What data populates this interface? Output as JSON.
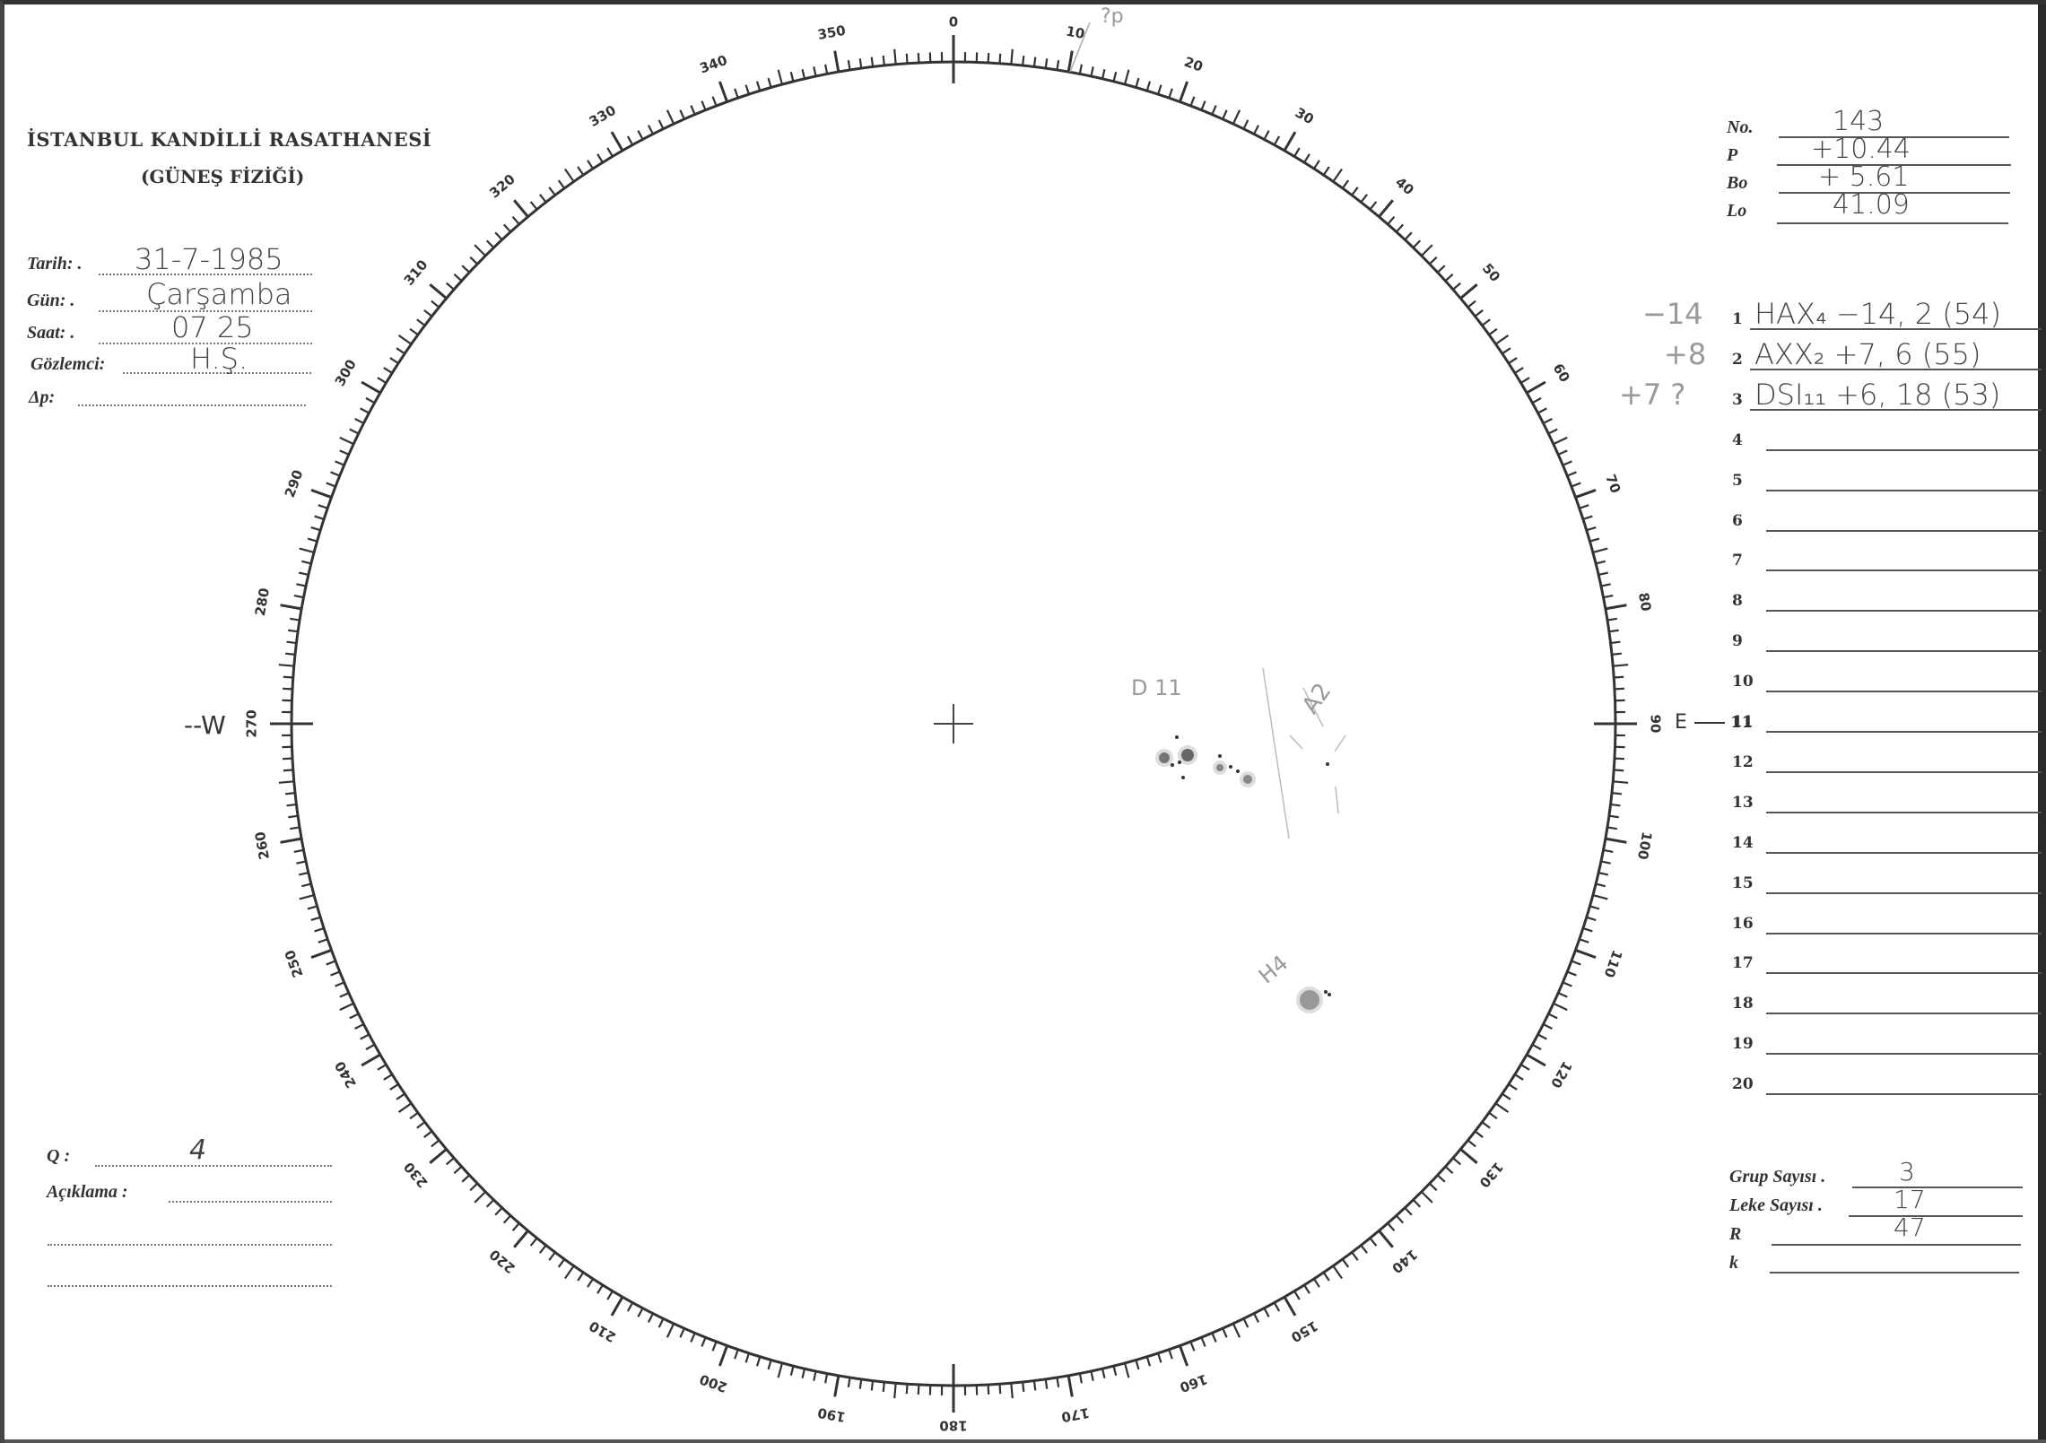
{
  "header": {
    "institution": "İSTANBUL KANDİLLİ RASATHANESİ",
    "department": "(GÜNEŞ FİZİĞİ)"
  },
  "observation": {
    "date_label": "Tarih: .",
    "date_value": "31-7-1985",
    "day_label": "Gün: .",
    "day_value": "Çarşamba",
    "time_label": "Saat: .",
    "time_value": "07 25",
    "observer_label": "Gözlemci:",
    "observer_value": "H.Ş.",
    "delta_p_label": "Δp:",
    "delta_p_value": ""
  },
  "ephemeris": {
    "no_label": "No.",
    "no_value": "143",
    "p_label": "P",
    "p_value": "+10.44",
    "bo_label": "Bo",
    "bo_value": "+ 5.61",
    "lo_label": "Lo",
    "lo_value": "41.09"
  },
  "groups": {
    "rows": [
      {
        "num": "1",
        "margin": "−14",
        "entry": "HAX₄ −14,  2 (54)"
      },
      {
        "num": "2",
        "margin": "+8",
        "entry": "AXX₂ +7,  6 (55)"
      },
      {
        "num": "3",
        "margin": "+7 ?",
        "entry": "DSI₁₁ +6, 18 (53)"
      },
      {
        "num": "4",
        "margin": "",
        "entry": ""
      },
      {
        "num": "5",
        "margin": "",
        "entry": ""
      },
      {
        "num": "6",
        "margin": "",
        "entry": ""
      },
      {
        "num": "7",
        "margin": "",
        "entry": ""
      },
      {
        "num": "8",
        "margin": "",
        "entry": ""
      },
      {
        "num": "9",
        "margin": "",
        "entry": ""
      },
      {
        "num": "10",
        "margin": "",
        "entry": ""
      },
      {
        "num": "11",
        "margin": "",
        "entry": ""
      },
      {
        "num": "12",
        "margin": "",
        "entry": ""
      },
      {
        "num": "13",
        "margin": "",
        "entry": ""
      },
      {
        "num": "14",
        "margin": "",
        "entry": ""
      },
      {
        "num": "15",
        "margin": "",
        "entry": ""
      },
      {
        "num": "16",
        "margin": "",
        "entry": ""
      },
      {
        "num": "17",
        "margin": "",
        "entry": ""
      },
      {
        "num": "18",
        "margin": "",
        "entry": ""
      },
      {
        "num": "19",
        "margin": "",
        "entry": ""
      },
      {
        "num": "20",
        "margin": "",
        "entry": ""
      }
    ]
  },
  "quality": {
    "q_label": "Q :",
    "q_value": "4",
    "remarks_label": "Açıklama :",
    "remarks_value": ""
  },
  "summary": {
    "group_count_label": "Grup Sayısı .",
    "group_count_value": "3",
    "spot_count_label": "Leke Sayısı .",
    "spot_count_value": "17",
    "r_label": "R",
    "r_value": "47",
    "k_label": "k",
    "k_value": ""
  },
  "disk": {
    "west_label": "W",
    "east_label": "E",
    "east_row_ref": "11",
    "degree_labels": [
      "0",
      "10",
      "20",
      "30",
      "40",
      "50",
      "60",
      "70",
      "80",
      "90",
      "100",
      "110",
      "120",
      "130",
      "140",
      "150",
      "160",
      "170",
      "180",
      "190",
      "200",
      "210",
      "220",
      "230",
      "240",
      "250",
      "260",
      "270",
      "280",
      "290",
      "300",
      "310",
      "320",
      "330",
      "340",
      "350"
    ],
    "p_annotation": "?p",
    "group_labels": {
      "d": "D 11",
      "a": "A2",
      "h": "H4"
    }
  }
}
